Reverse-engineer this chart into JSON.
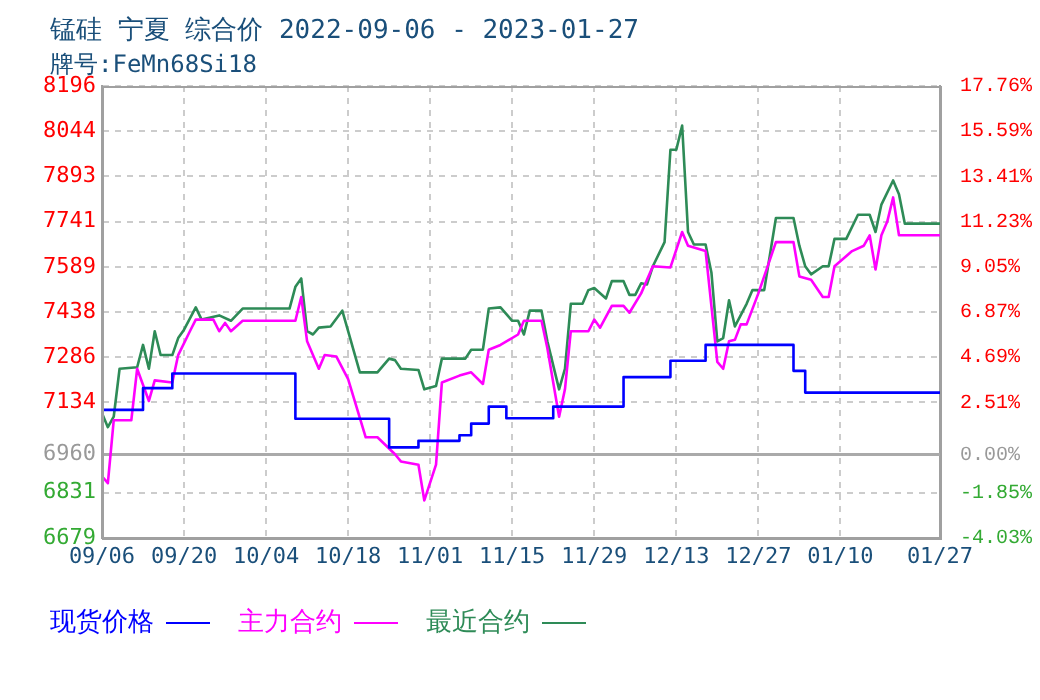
{
  "chart_data": {
    "type": "line",
    "title": "锰硅 宁夏 综合价 2022-09-06 - 2023-01-27",
    "subtitle": "牌号:FeMn68Si18",
    "xlim": [
      "2022-09-06",
      "2023-01-27"
    ],
    "xticks": [
      {
        "value": "2022-09-06",
        "label": "09/06"
      },
      {
        "value": "2022-09-20",
        "label": "09/20"
      },
      {
        "value": "2022-10-04",
        "label": "10/04"
      },
      {
        "value": "2022-10-18",
        "label": "10/18"
      },
      {
        "value": "2022-11-01",
        "label": "11/01"
      },
      {
        "value": "2022-11-15",
        "label": "11/15"
      },
      {
        "value": "2022-11-29",
        "label": "11/29"
      },
      {
        "value": "2022-12-13",
        "label": "12/13"
      },
      {
        "value": "2022-12-27",
        "label": "12/27"
      },
      {
        "value": "2023-01-10",
        "label": "01/10"
      },
      {
        "value": "2023-01-27",
        "label": "01/27"
      }
    ],
    "ylim": [
      6679,
      8196
    ],
    "yticks": [
      6679,
      6831,
      6960,
      7134,
      7286,
      7438,
      7589,
      7741,
      7893,
      8044,
      8196
    ],
    "y2lim": [
      -4.03,
      17.76
    ],
    "y2ticks": [
      {
        "value": -4.03,
        "label": "-4.03%"
      },
      {
        "value": -1.85,
        "label": "-1.85%"
      },
      {
        "value": 0,
        "label": "0.00%"
      },
      {
        "value": 2.51,
        "label": "2.51%"
      },
      {
        "value": 4.69,
        "label": "4.69%"
      },
      {
        "value": 6.87,
        "label": "6.87%"
      },
      {
        "value": 9.05,
        "label": "9.05%"
      },
      {
        "value": 11.23,
        "label": "11.23%"
      },
      {
        "value": 13.41,
        "label": "13.41%"
      },
      {
        "value": 15.59,
        "label": "15.59%"
      },
      {
        "value": 17.76,
        "label": "17.76%"
      }
    ],
    "ref_lines": [
      {
        "axis": "y2",
        "value": 0,
        "color": "#aaaaaa",
        "line_style": "solid"
      }
    ],
    "grid": true,
    "legend": "bottom",
    "marker": "none",
    "series": [
      {
        "name": "现货价格",
        "type": "step",
        "color": "#0000ff",
        "x": [
          "2022-09-06",
          "2022-09-13",
          "2022-09-18",
          "2022-10-09",
          "2022-10-25",
          "2022-10-30",
          "2022-11-06",
          "2022-11-08",
          "2022-11-11",
          "2022-11-14",
          "2022-11-22",
          "2022-12-04",
          "2022-12-12",
          "2022-12-18",
          "2023-01-02",
          "2023-01-04",
          "2023-01-08",
          "2023-01-27"
        ],
        "values": [
          6960,
          7109,
          7182,
          7231,
          7079,
          6983,
          7005,
          7024,
          7063,
          7120,
          7081,
          7120,
          7219,
          7274,
          7327,
          7240,
          7167,
          7167
        ]
      },
      {
        "name": "主力合约",
        "color": "#ff00ff",
        "x": [
          "2022-09-06",
          "2022-09-07",
          "2022-09-08",
          "2022-09-11",
          "2022-09-12",
          "2022-09-14",
          "2022-09-15",
          "2022-09-18",
          "2022-09-19",
          "2022-09-21",
          "2022-09-22",
          "2022-09-25",
          "2022-09-26",
          "2022-09-27",
          "2022-09-28",
          "2022-09-30",
          "2022-10-09",
          "2022-10-10",
          "2022-10-11",
          "2022-10-13",
          "2022-10-14",
          "2022-10-16",
          "2022-10-18",
          "2022-10-21",
          "2022-10-23",
          "2022-10-26",
          "2022-10-27",
          "2022-10-30",
          "2022-10-31",
          "2022-11-02",
          "2022-11-03",
          "2022-11-06",
          "2022-11-08",
          "2022-11-10",
          "2022-11-11",
          "2022-11-13",
          "2022-11-16",
          "2022-11-17",
          "2022-11-20",
          "2022-11-21",
          "2022-11-23",
          "2022-11-24",
          "2022-11-25",
          "2022-11-28",
          "2022-11-29",
          "2022-11-30",
          "2022-12-02",
          "2022-12-04",
          "2022-12-05",
          "2022-12-07",
          "2022-12-09",
          "2022-12-12",
          "2022-12-14",
          "2022-12-15",
          "2022-12-18",
          "2022-12-20",
          "2022-12-21",
          "2022-12-22",
          "2022-12-23",
          "2022-12-24",
          "2022-12-25",
          "2022-12-27",
          "2022-12-28",
          "2022-12-30",
          "2023-01-02",
          "2023-01-03",
          "2023-01-05",
          "2023-01-07",
          "2023-01-08",
          "2023-01-09",
          "2023-01-12",
          "2023-01-14",
          "2023-01-15",
          "2023-01-16",
          "2023-01-17",
          "2023-01-18",
          "2023-01-19",
          "2023-01-20",
          "2023-01-27"
        ],
        "values": [
          6886,
          6863,
          7074,
          7074,
          7247,
          7139,
          7208,
          7201,
          7293,
          7373,
          7412,
          7412,
          7373,
          7401,
          7373,
          7408,
          7408,
          7488,
          7339,
          7247,
          7293,
          7288,
          7212,
          7017,
          7017,
          6960,
          6936,
          6925,
          6805,
          6925,
          7201,
          7224,
          7235,
          7196,
          7311,
          7327,
          7362,
          7408,
          7408,
          7316,
          7086,
          7178,
          7373,
          7373,
          7412,
          7385,
          7458,
          7458,
          7435,
          7500,
          7591,
          7587,
          7706,
          7660,
          7642,
          7270,
          7247,
          7339,
          7344,
          7396,
          7396,
          7500,
          7557,
          7672,
          7672,
          7557,
          7546,
          7488,
          7488,
          7591,
          7642,
          7660,
          7695,
          7580,
          7695,
          7741,
          7822,
          7695,
          7695
        ]
      },
      {
        "name": "最近合约",
        "color": "#2e8b57",
        "x": [
          "2022-09-06",
          "2022-09-07",
          "2022-09-08",
          "2022-09-09",
          "2022-09-12",
          "2022-09-13",
          "2022-09-14",
          "2022-09-15",
          "2022-09-16",
          "2022-09-18",
          "2022-09-19",
          "2022-09-20",
          "2022-09-22",
          "2022-09-23",
          "2022-09-26",
          "2022-09-28",
          "2022-09-30",
          "2022-10-08",
          "2022-10-09",
          "2022-10-10",
          "2022-10-11",
          "2022-10-12",
          "2022-10-13",
          "2022-10-15",
          "2022-10-17",
          "2022-10-18",
          "2022-10-20",
          "2022-10-23",
          "2022-10-25",
          "2022-10-26",
          "2022-10-27",
          "2022-10-30",
          "2022-10-31",
          "2022-11-02",
          "2022-11-03",
          "2022-11-07",
          "2022-11-08",
          "2022-11-10",
          "2022-11-11",
          "2022-11-13",
          "2022-11-15",
          "2022-11-16",
          "2022-11-17",
          "2022-11-18",
          "2022-11-20",
          "2022-11-21",
          "2022-11-23",
          "2022-11-24",
          "2022-11-25",
          "2022-11-27",
          "2022-11-28",
          "2022-11-29",
          "2022-12-01",
          "2022-12-02",
          "2022-12-04",
          "2022-12-05",
          "2022-12-06",
          "2022-12-07",
          "2022-12-08",
          "2022-12-09",
          "2022-12-11",
          "2022-12-12",
          "2022-12-13",
          "2022-12-14",
          "2022-12-15",
          "2022-12-16",
          "2022-12-18",
          "2022-12-19",
          "2022-12-20",
          "2022-12-21",
          "2022-12-22",
          "2022-12-23",
          "2022-12-25",
          "2022-12-26",
          "2022-12-28",
          "2022-12-30",
          "2023-01-02",
          "2023-01-03",
          "2023-01-04",
          "2023-01-05",
          "2023-01-07",
          "2023-01-08",
          "2023-01-09",
          "2023-01-11",
          "2023-01-13",
          "2023-01-15",
          "2023-01-16",
          "2023-01-17",
          "2023-01-19",
          "2023-01-20",
          "2023-01-21",
          "2023-01-27"
        ],
        "values": [
          7098,
          7051,
          7086,
          7247,
          7252,
          7327,
          7247,
          7373,
          7293,
          7293,
          7350,
          7378,
          7453,
          7412,
          7426,
          7408,
          7449,
          7449,
          7522,
          7550,
          7373,
          7362,
          7385,
          7389,
          7442,
          7373,
          7235,
          7235,
          7281,
          7276,
          7247,
          7243,
          7178,
          7189,
          7281,
          7281,
          7311,
          7311,
          7449,
          7453,
          7408,
          7408,
          7362,
          7442,
          7442,
          7339,
          7178,
          7247,
          7465,
          7465,
          7511,
          7518,
          7483,
          7541,
          7541,
          7495,
          7495,
          7534,
          7530,
          7591,
          7672,
          7982,
          7982,
          8063,
          7706,
          7664,
          7664,
          7569,
          7339,
          7350,
          7477,
          7389,
          7465,
          7511,
          7511,
          7753,
          7753,
          7660,
          7591,
          7564,
          7591,
          7591,
          7683,
          7683,
          7764,
          7764,
          7706,
          7798,
          7879,
          7833,
          7734,
          7734
        ]
      }
    ]
  }
}
